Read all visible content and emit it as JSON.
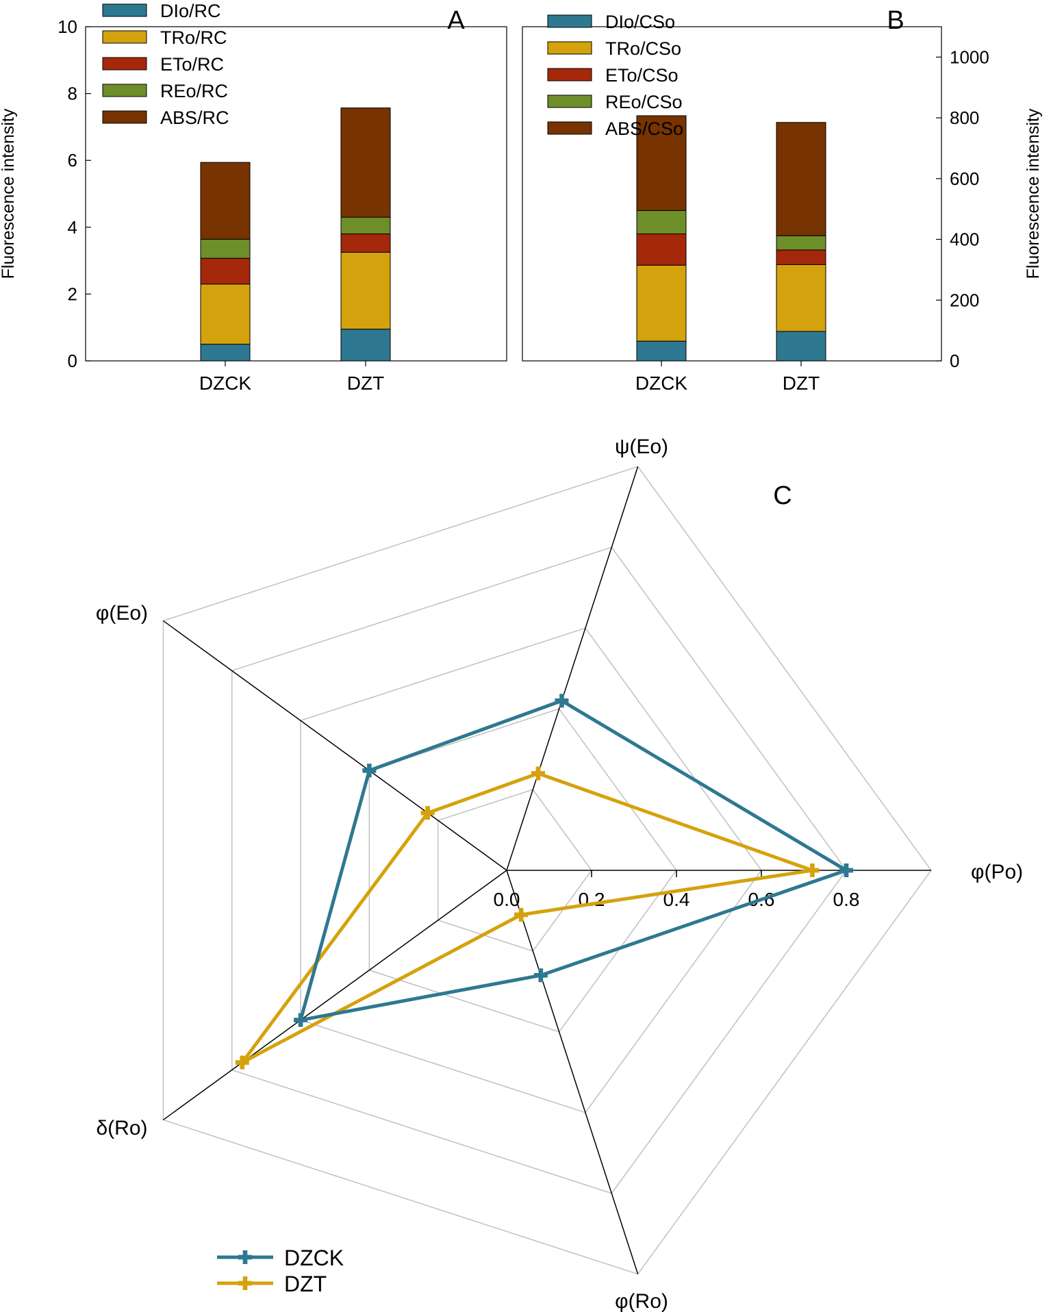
{
  "chart_data": [
    {
      "panel": "A",
      "type": "bar",
      "stacked": true,
      "ylabel": "Fluorescence intensity",
      "ylim": [
        0,
        10
      ],
      "yticks": [
        0,
        2,
        4,
        6,
        8,
        10
      ],
      "categories": [
        "DZCK",
        "DZT"
      ],
      "series": [
        {
          "name": "DIo/RC",
          "color": "#2e7891",
          "values": [
            0.5,
            0.95
          ]
        },
        {
          "name": "TRo/RC",
          "color": "#d4a20c",
          "values": [
            1.8,
            2.3
          ]
        },
        {
          "name": "ETo/RC",
          "color": "#a6280a",
          "values": [
            0.77,
            0.55
          ]
        },
        {
          "name": "REo/RC",
          "color": "#6d8e28",
          "values": [
            0.57,
            0.5
          ]
        },
        {
          "name": "ABS/RC",
          "color": "#773300",
          "values": [
            2.3,
            3.27
          ]
        }
      ]
    },
    {
      "panel": "B",
      "type": "bar",
      "stacked": true,
      "ylabel": "Fluorescence intensity",
      "ylim": [
        0,
        1100
      ],
      "yticks": [
        0,
        200,
        400,
        600,
        800,
        1000
      ],
      "categories": [
        "DZCK",
        "DZT"
      ],
      "series": [
        {
          "name": "DIo/CSo",
          "color": "#2e7891",
          "values": [
            65,
            97
          ]
        },
        {
          "name": "TRo/CSo",
          "color": "#d4a20c",
          "values": [
            250,
            220
          ]
        },
        {
          "name": "ETo/CSo",
          "color": "#a6280a",
          "values": [
            103,
            48
          ]
        },
        {
          "name": "REo/CSo",
          "color": "#6d8e28",
          "values": [
            77,
            47
          ]
        },
        {
          "name": "ABS/CSo",
          "color": "#773300",
          "values": [
            312,
            373
          ]
        }
      ]
    },
    {
      "panel": "C",
      "type": "radar",
      "axes": [
        "φ(Po)",
        "ψ(Eo)",
        "φ(Eo)",
        "δ(Ro)",
        "φ(Ro)"
      ],
      "rlim": [
        0,
        1
      ],
      "rticks": [
        0.0,
        0.2,
        0.4,
        0.6,
        0.8
      ],
      "rtick_labels": [
        "0.0",
        "0.2",
        "0.4",
        "0.6",
        "0.8"
      ],
      "series": [
        {
          "name": "DZCK",
          "color": "#2e7891",
          "values": [
            0.8,
            0.42,
            0.4,
            0.6,
            0.26
          ]
        },
        {
          "name": "DZT",
          "color": "#d4a20c",
          "values": [
            0.72,
            0.24,
            0.23,
            0.77,
            0.11
          ]
        }
      ]
    }
  ]
}
